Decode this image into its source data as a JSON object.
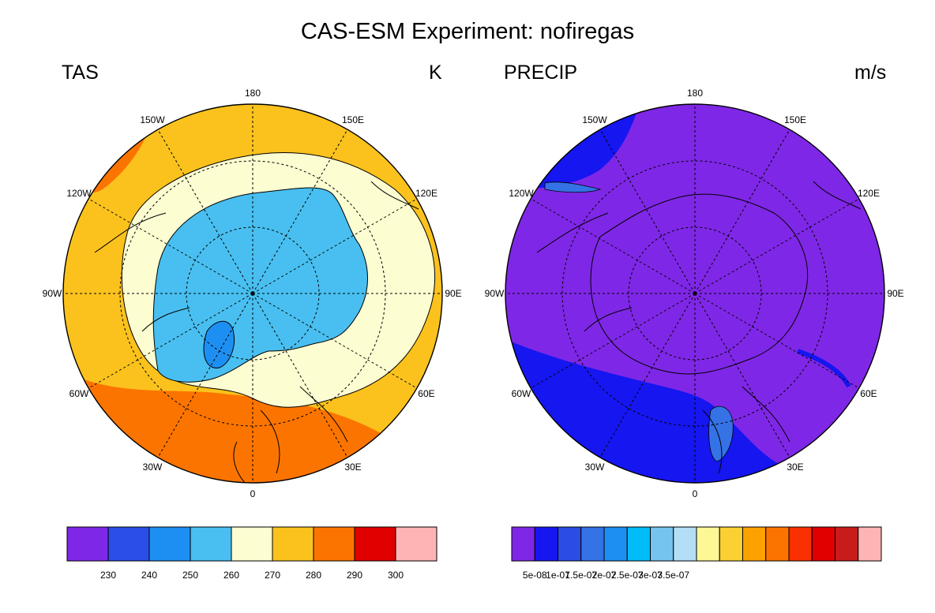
{
  "title": "CAS-ESM Experiment: nofiregas",
  "panels": [
    {
      "variable": "TAS",
      "units": "K",
      "lon_labels": [
        "180",
        "150E",
        "120E",
        "90E",
        "60E",
        "30E",
        "0",
        "30W",
        "60W",
        "90W",
        "120W",
        "150W"
      ],
      "colorbar": {
        "colors": [
          "#7f27e6",
          "#2b4de8",
          "#1e8ff2",
          "#48bff0",
          "#fdfdd2",
          "#fbc21d",
          "#fc7400",
          "#e10000",
          "#feb4b4"
        ],
        "tick_labels": [
          "230",
          "240",
          "250",
          "260",
          "270",
          "280",
          "290",
          "300"
        ]
      }
    },
    {
      "variable": "PRECIP",
      "units": "m/s",
      "lon_labels": [
        "180",
        "150E",
        "120E",
        "90E",
        "60E",
        "30E",
        "0",
        "30W",
        "60W",
        "90W",
        "120W",
        "150W"
      ],
      "colorbar": {
        "colors": [
          "#7f27e6",
          "#1616f0",
          "#2c4ce6",
          "#3572e6",
          "#1e8ff2",
          "#00bcf7",
          "#74c4ef",
          "#b4def6",
          "#fdf796",
          "#fad032",
          "#fba100",
          "#fc7400",
          "#fb3000",
          "#e10000",
          "#c81c1c",
          "#feb4b4"
        ],
        "tick_labels": [
          "5e-08",
          "1e-07",
          "1.5e-07",
          "2e-07",
          "2.5e-07",
          "3e-07",
          "3.5e-07"
        ]
      }
    }
  ]
}
